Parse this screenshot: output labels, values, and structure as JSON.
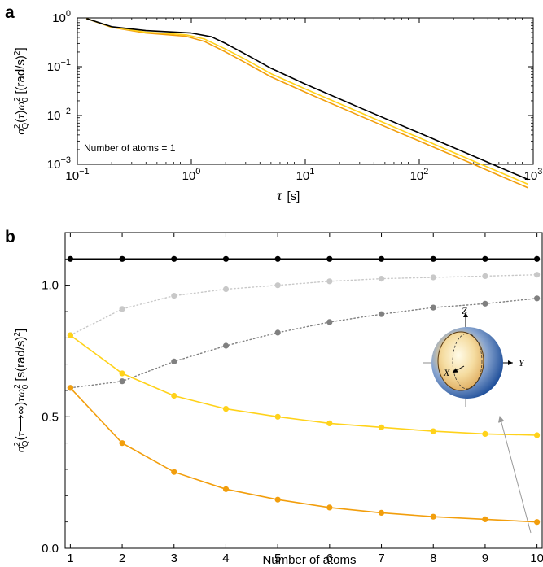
{
  "chart_data": [
    {
      "panel": "a",
      "type": "line",
      "xscale": "log",
      "yscale": "log",
      "xlim": [
        0.1,
        1000
      ],
      "ylim": [
        0.001,
        1
      ],
      "xticks": [
        "10",
        "10",
        "10",
        "10",
        "10"
      ],
      "xtick_exponents": [
        "−1",
        "0",
        "1",
        "2",
        "3"
      ],
      "yticks": [
        "10",
        "10",
        "10",
        "10"
      ],
      "ytick_exponents": [
        "−3",
        "−2",
        "−1",
        "0"
      ],
      "xlabel": "τ  [s]",
      "ylabel": "σ²_Q(τ)ω₀² [(rad/s)²]",
      "annotation": "Number of atoms = 1",
      "series": [
        {
          "color": "#000000",
          "x": [
            0.12,
            0.2,
            0.4,
            1.0,
            1.5,
            2.0,
            3.0,
            5.0,
            10,
            30,
            100,
            300,
            900
          ],
          "y": [
            0.97,
            0.66,
            0.55,
            0.49,
            0.41,
            0.3,
            0.18,
            0.093,
            0.044,
            0.0145,
            0.0044,
            0.00147,
            0.00049
          ]
        },
        {
          "color": "#FFD21A",
          "x": [
            0.12,
            0.2,
            0.4,
            0.9,
            1.3,
            2.0,
            3.0,
            5.0,
            10,
            30,
            100,
            300,
            900
          ],
          "y": [
            0.97,
            0.65,
            0.51,
            0.45,
            0.37,
            0.23,
            0.14,
            0.072,
            0.035,
            0.0116,
            0.0035,
            0.00116,
            0.00039
          ]
        },
        {
          "color": "#F29E0C",
          "x": [
            0.12,
            0.2,
            0.4,
            0.9,
            1.3,
            2.0,
            3.0,
            5.0,
            10,
            30,
            100,
            300,
            900
          ],
          "y": [
            0.97,
            0.64,
            0.49,
            0.42,
            0.33,
            0.2,
            0.12,
            0.062,
            0.03,
            0.0099,
            0.003,
            0.001,
            0.00033
          ]
        }
      ]
    },
    {
      "panel": "b",
      "type": "line",
      "xlim": [
        0.9,
        10.1
      ],
      "ylim": [
        0,
        1.2
      ],
      "xticks": [
        1,
        2,
        3,
        4,
        5,
        6,
        7,
        8,
        9,
        10
      ],
      "yticks": [
        "0.0",
        "0.5",
        "1.0"
      ],
      "ytick_values": [
        0,
        0.5,
        1.0
      ],
      "xlabel": "Number of atoms",
      "ylabel": "σ²_Q(τ⟶∞)τω₀² [s(rad/s)²]",
      "x": [
        1,
        2,
        3,
        4,
        5,
        6,
        7,
        8,
        9,
        10
      ],
      "series": [
        {
          "color": "#000000",
          "style": "solid",
          "values": [
            1.1,
            1.1,
            1.1,
            1.1,
            1.1,
            1.1,
            1.1,
            1.1,
            1.1,
            1.1
          ]
        },
        {
          "color": "#C8C8C8",
          "style": "dotted",
          "values": [
            0.81,
            0.91,
            0.96,
            0.985,
            1.0,
            1.015,
            1.025,
            1.03,
            1.035,
            1.04
          ]
        },
        {
          "color": "#808080",
          "style": "dotted",
          "values": [
            0.61,
            0.635,
            0.71,
            0.77,
            0.82,
            0.86,
            0.89,
            0.915,
            0.93,
            0.95
          ]
        },
        {
          "color": "#FFD21A",
          "style": "solid",
          "values": [
            0.81,
            0.665,
            0.58,
            0.53,
            0.5,
            0.475,
            0.46,
            0.445,
            0.435,
            0.43
          ]
        },
        {
          "color": "#F29E0C",
          "style": "solid",
          "values": [
            0.61,
            0.4,
            0.29,
            0.225,
            0.185,
            0.155,
            0.135,
            0.12,
            0.11,
            0.1
          ]
        }
      ],
      "inset_labels": {
        "z": "Z",
        "y": "Y",
        "x": "X"
      }
    }
  ]
}
